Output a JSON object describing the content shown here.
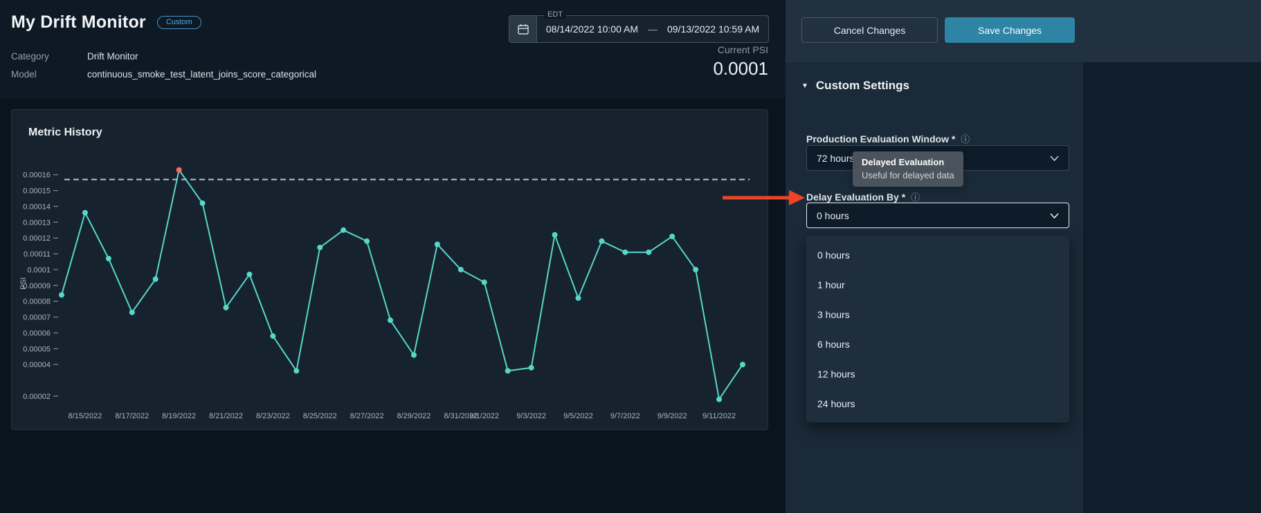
{
  "header": {
    "title": "My Drift Monitor",
    "badge": "Custom",
    "category_label": "Category",
    "category_value": "Drift Monitor",
    "model_label": "Model",
    "model_value": "continuous_smoke_test_latent_joins_score_categorical",
    "current_psi_label": "Current PSI",
    "current_psi_value": "0.0001",
    "date_picker": {
      "timezone": "EDT",
      "start": "08/14/2022 10:00 AM",
      "separator": "—",
      "end": "09/13/2022 10:59 AM"
    }
  },
  "chart_data": {
    "type": "line",
    "title": "Metric History",
    "ylabel": "PSI",
    "ylim": [
      1.65e-05,
      0.000166
    ],
    "yticks": [
      2e-05,
      4e-05,
      5e-05,
      6e-05,
      7e-05,
      8e-05,
      9e-05,
      0.0001,
      0.00011,
      0.00012,
      0.00013,
      0.00014,
      0.00015,
      0.00016
    ],
    "threshold": 0.000157,
    "line_color": "#57d7c9",
    "alert_color": "#ff6a5a",
    "alert_index": 5,
    "dates": [
      "8/14/2022",
      "8/15/2022",
      "8/16/2022",
      "8/17/2022",
      "8/18/2022",
      "8/19/2022",
      "8/20/2022",
      "8/21/2022",
      "8/22/2022",
      "8/23/2022",
      "8/24/2022",
      "8/25/2022",
      "8/26/2022",
      "8/27/2022",
      "8/28/2022",
      "8/29/2022",
      "8/30/2022",
      "8/31/2022",
      "9/1/2022",
      "9/2/2022",
      "9/3/2022",
      "9/4/2022",
      "9/5/2022",
      "9/6/2022",
      "9/7/2022",
      "9/8/2022",
      "9/9/2022",
      "9/10/2022",
      "9/11/2022",
      "9/12/2022"
    ],
    "values": [
      8.4e-05,
      0.000136,
      0.000107,
      7.3e-05,
      9.4e-05,
      0.000163,
      0.000142,
      7.6e-05,
      9.7e-05,
      5.8e-05,
      3.6e-05,
      0.000114,
      0.000125,
      0.000118,
      6.8e-05,
      4.6e-05,
      0.000116,
      0.0001,
      9.2e-05,
      3.6e-05,
      3.8e-05,
      0.000122,
      8.2e-05,
      0.000118,
      0.000111,
      0.000111,
      0.000121,
      0.0001,
      1.8e-05,
      4e-05
    ],
    "xticks": [
      {
        "label": "8/15/2022",
        "i": 1
      },
      {
        "label": "8/17/2022",
        "i": 3
      },
      {
        "label": "8/19/2022",
        "i": 5
      },
      {
        "label": "8/21/2022",
        "i": 7
      },
      {
        "label": "8/23/2022",
        "i": 9
      },
      {
        "label": "8/25/2022",
        "i": 11
      },
      {
        "label": "8/27/2022",
        "i": 13
      },
      {
        "label": "8/29/2022",
        "i": 15
      },
      {
        "label": "8/31/2022",
        "i": 17
      },
      {
        "label": "9/1/2022",
        "i": 18
      },
      {
        "label": "9/3/2022",
        "i": 20
      },
      {
        "label": "9/5/2022",
        "i": 22
      },
      {
        "label": "9/7/2022",
        "i": 24
      },
      {
        "label": "9/9/2022",
        "i": 26
      },
      {
        "label": "9/11/2022",
        "i": 28
      }
    ],
    "legend": false,
    "grid": false
  },
  "panel": {
    "cancel_label": "Cancel Changes",
    "save_label": "Save Changes",
    "section_title": "Custom Settings",
    "production_window": {
      "label": "Production Evaluation Window *",
      "value": "72 hours"
    },
    "delay_evaluation": {
      "label": "Delay Evaluation By *",
      "value": "0 hours"
    },
    "delay_options": [
      "0 hours",
      "1 hour",
      "3 hours",
      "6 hours",
      "12 hours",
      "24 hours"
    ]
  },
  "tooltip": {
    "title": "Delayed Evaluation",
    "subtitle": "Useful for delayed data"
  },
  "colors": {
    "accent_teal": "#57d7c9",
    "alert_red": "#ff6a5a",
    "annotation_red": "#f04326",
    "save_button": "#2d84a4",
    "link_blue": "#62b1dd"
  }
}
